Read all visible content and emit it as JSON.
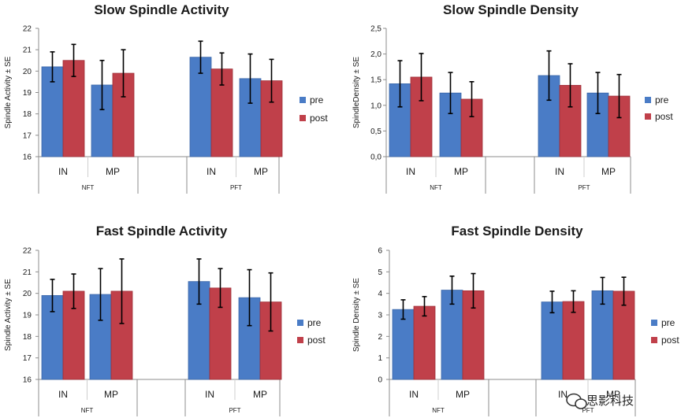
{
  "colors": {
    "pre": "#4a7cc6",
    "post": "#c0404a",
    "axis": "#8c8c8c",
    "errbar": "#000000"
  },
  "watermark": {
    "icon": "wechat-icon",
    "text": "思影科技"
  },
  "chart_data": [
    {
      "type": "bar",
      "title": "Slow Spindle Activity",
      "ylabel": "Spindle Activity ± SE",
      "ylim": [
        16,
        22
      ],
      "yticks": [
        "16",
        "17",
        "18",
        "19",
        "20",
        "21",
        "22"
      ],
      "ytick_values": [
        16,
        17,
        18,
        19,
        20,
        21,
        22
      ],
      "groups": [
        "NFT",
        "PFT"
      ],
      "categories": [
        "IN",
        "MP",
        "IN",
        "MP"
      ],
      "legend": [
        "pre",
        "post"
      ],
      "series": [
        {
          "name": "pre",
          "values": [
            20.2,
            19.35,
            20.65,
            19.65
          ],
          "errors": [
            0.7,
            1.15,
            0.75,
            1.15
          ]
        },
        {
          "name": "post",
          "values": [
            20.5,
            19.9,
            20.1,
            19.55
          ],
          "errors": [
            0.75,
            1.1,
            0.75,
            1.0
          ]
        }
      ]
    },
    {
      "type": "bar",
      "title": "Slow Spindle Density",
      "ylabel": "SpindleDensity ± SE",
      "ylim": [
        0,
        2.5
      ],
      "yticks": [
        "0,0",
        "0,5",
        "1,0",
        "1,5",
        "2,0",
        "2,5"
      ],
      "ytick_values": [
        0,
        0.5,
        1.0,
        1.5,
        2.0,
        2.5
      ],
      "groups": [
        "NFT",
        "PFT"
      ],
      "categories": [
        "IN",
        "MP",
        "IN",
        "MP"
      ],
      "legend": [
        "pre",
        "post"
      ],
      "series": [
        {
          "name": "pre",
          "values": [
            1.42,
            1.24,
            1.58,
            1.24
          ],
          "errors": [
            0.45,
            0.4,
            0.48,
            0.4
          ]
        },
        {
          "name": "post",
          "values": [
            1.55,
            1.12,
            1.39,
            1.18
          ],
          "errors": [
            0.46,
            0.34,
            0.42,
            0.42
          ]
        }
      ]
    },
    {
      "type": "bar",
      "title": "Fast Spindle Activity",
      "ylabel": "Spindle Activity ± SE",
      "ylim": [
        16,
        22
      ],
      "yticks": [
        "16",
        "17",
        "18",
        "19",
        "20",
        "21",
        "22"
      ],
      "ytick_values": [
        16,
        17,
        18,
        19,
        20,
        21,
        22
      ],
      "groups": [
        "NFT",
        "PFT"
      ],
      "categories": [
        "IN",
        "MP",
        "IN",
        "MP"
      ],
      "legend": [
        "pre",
        "post"
      ],
      "series": [
        {
          "name": "pre",
          "values": [
            19.9,
            19.95,
            20.55,
            19.8
          ],
          "errors": [
            0.75,
            1.2,
            1.05,
            1.3
          ]
        },
        {
          "name": "post",
          "values": [
            20.1,
            20.1,
            20.25,
            19.6
          ],
          "errors": [
            0.8,
            1.5,
            0.9,
            1.35
          ]
        }
      ]
    },
    {
      "type": "bar",
      "title": "Fast Spindle Density",
      "ylabel": "Spindle Density ± SE",
      "ylim": [
        0,
        6
      ],
      "yticks": [
        "0",
        "1",
        "2",
        "3",
        "4",
        "5",
        "6"
      ],
      "ytick_values": [
        0,
        1,
        2,
        3,
        4,
        5,
        6
      ],
      "groups": [
        "NFT",
        "PFT"
      ],
      "categories": [
        "IN",
        "MP",
        "IN",
        "MP"
      ],
      "legend": [
        "pre",
        "post"
      ],
      "series": [
        {
          "name": "pre",
          "values": [
            3.25,
            4.15,
            3.6,
            4.12
          ],
          "errors": [
            0.45,
            0.65,
            0.5,
            0.62
          ]
        },
        {
          "name": "post",
          "values": [
            3.4,
            4.12,
            3.62,
            4.1
          ],
          "errors": [
            0.45,
            0.8,
            0.5,
            0.65
          ]
        }
      ]
    }
  ]
}
